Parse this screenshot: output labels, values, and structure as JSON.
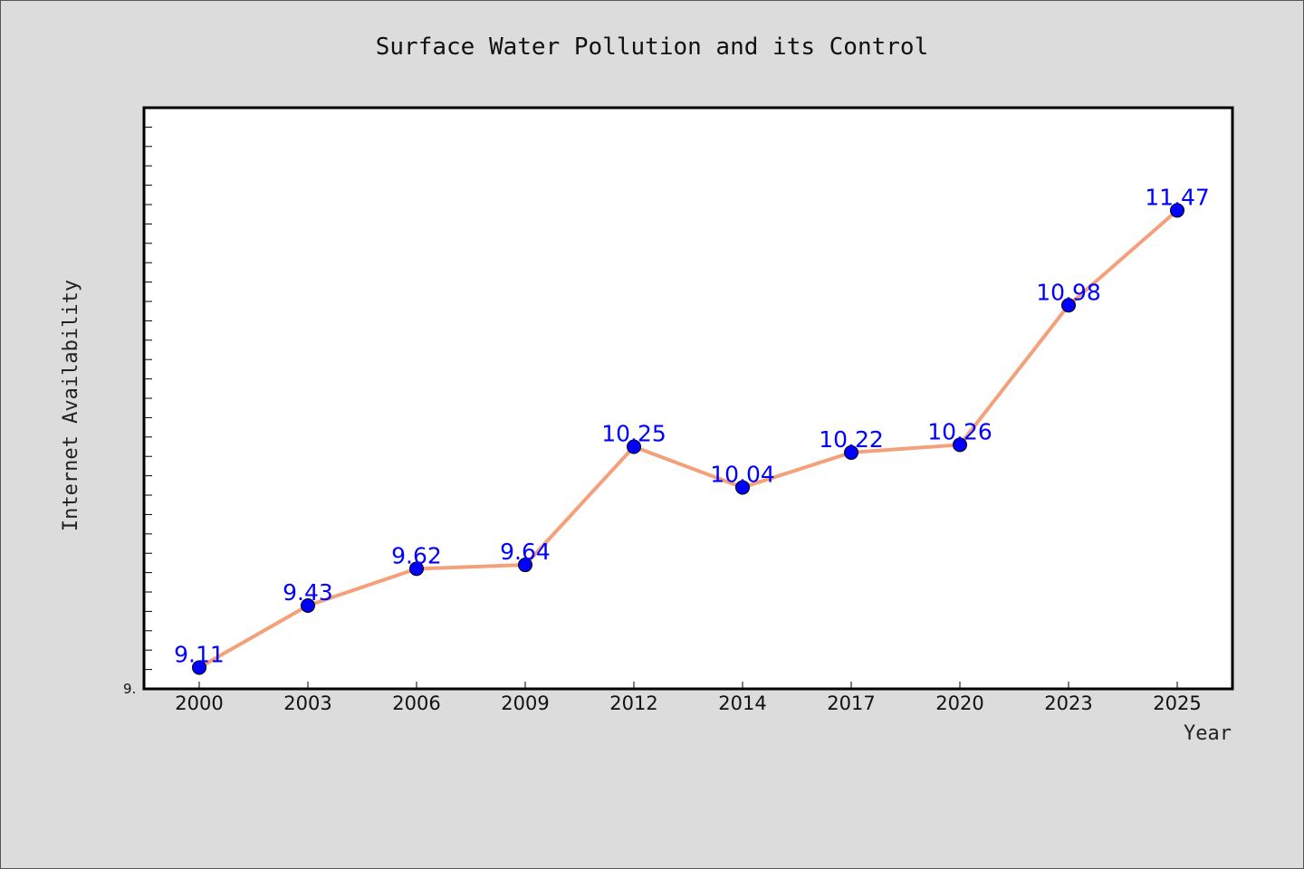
{
  "chart_data": {
    "type": "line",
    "title": "Surface Water Pollution and its Control",
    "xlabel": "Year",
    "ylabel": "Internet Availability",
    "categories": [
      "2000",
      "2003",
      "2006",
      "2009",
      "2012",
      "2014",
      "2017",
      "2020",
      "2023",
      "2025"
    ],
    "series": [
      {
        "values": [
          9.11,
          9.43,
          9.62,
          9.64,
          10.25,
          10.04,
          10.22,
          10.26,
          10.98,
          11.47
        ]
      }
    ],
    "ylim": [
      9.0,
      12.0
    ],
    "y_tick_labels": [
      "9."
    ],
    "grid": false,
    "legend": "none",
    "colors": {
      "line": "#f4a07a",
      "marker": "#0000ff",
      "labels": "#0000ff",
      "plot_bg": "#ffffff",
      "page_bg": "#dcdcdc"
    }
  }
}
